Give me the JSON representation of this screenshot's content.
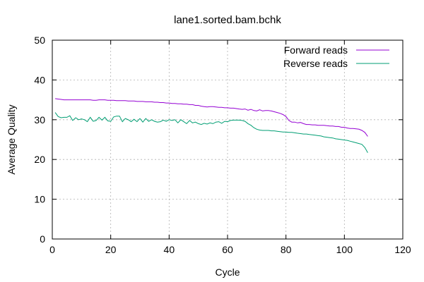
{
  "chart_data": {
    "type": "line",
    "title": "lane1.sorted.bam.bchk",
    "xlabel": "Cycle",
    "ylabel": "Average Quality",
    "xlim": [
      0,
      120
    ],
    "ylim": [
      0,
      50
    ],
    "xticks": [
      0,
      20,
      40,
      60,
      80,
      100,
      120
    ],
    "yticks": [
      0,
      10,
      20,
      30,
      40,
      50
    ],
    "grid": true,
    "legend_position": "top-right",
    "series": [
      {
        "name": "Forward reads",
        "color": "#9400d3",
        "x": [
          1,
          2,
          3,
          4,
          5,
          6,
          7,
          8,
          9,
          10,
          11,
          12,
          13,
          14,
          15,
          16,
          17,
          18,
          19,
          20,
          21,
          22,
          23,
          24,
          25,
          26,
          27,
          28,
          29,
          30,
          31,
          32,
          33,
          34,
          35,
          36,
          37,
          38,
          39,
          40,
          41,
          42,
          43,
          44,
          45,
          46,
          47,
          48,
          49,
          50,
          51,
          52,
          53,
          54,
          55,
          56,
          57,
          58,
          59,
          60,
          61,
          62,
          63,
          64,
          65,
          66,
          67,
          68,
          69,
          70,
          71,
          72,
          73,
          74,
          75,
          76,
          77,
          78,
          79,
          80,
          81,
          82,
          83,
          84,
          85,
          86,
          87,
          88,
          89,
          90,
          91,
          92,
          93,
          94,
          95,
          96,
          97,
          98,
          99,
          100,
          101,
          102,
          103,
          104,
          105,
          106,
          107,
          108
        ],
        "y": [
          35.3,
          35.2,
          35.1,
          35.0,
          35.0,
          35.0,
          35.0,
          35.0,
          35.0,
          35.0,
          35.0,
          35.0,
          35.0,
          34.9,
          34.9,
          35.0,
          35.0,
          35.0,
          34.9,
          34.9,
          34.9,
          34.8,
          34.8,
          34.8,
          34.8,
          34.7,
          34.7,
          34.7,
          34.6,
          34.6,
          34.6,
          34.5,
          34.5,
          34.5,
          34.4,
          34.4,
          34.3,
          34.3,
          34.2,
          34.2,
          34.1,
          34.1,
          34.0,
          34.0,
          33.9,
          33.9,
          33.8,
          33.8,
          33.6,
          33.6,
          33.4,
          33.3,
          33.2,
          33.3,
          33.3,
          33.2,
          33.1,
          33.1,
          33.0,
          33.0,
          32.9,
          32.9,
          32.8,
          32.7,
          32.6,
          32.7,
          32.4,
          32.6,
          32.3,
          32.2,
          32.5,
          32.2,
          32.3,
          32.3,
          32.2,
          32.0,
          31.8,
          31.6,
          31.3,
          30.8,
          29.8,
          29.4,
          29.4,
          29.2,
          29.3,
          29.0,
          28.8,
          28.8,
          28.7,
          28.7,
          28.6,
          28.6,
          28.6,
          28.5,
          28.4,
          28.4,
          28.3,
          28.3,
          28.1,
          28.1,
          27.9,
          27.8,
          27.8,
          27.7,
          27.6,
          27.3,
          26.8,
          25.8
        ]
      },
      {
        "name": "Reverse reads",
        "color": "#009e73",
        "x": [
          1,
          2,
          3,
          4,
          5,
          6,
          7,
          8,
          9,
          10,
          11,
          12,
          13,
          14,
          15,
          16,
          17,
          18,
          19,
          20,
          21,
          22,
          23,
          24,
          25,
          26,
          27,
          28,
          29,
          30,
          31,
          32,
          33,
          34,
          35,
          36,
          37,
          38,
          39,
          40,
          41,
          42,
          43,
          44,
          45,
          46,
          47,
          48,
          49,
          50,
          51,
          52,
          53,
          54,
          55,
          56,
          57,
          58,
          59,
          60,
          61,
          62,
          63,
          64,
          65,
          66,
          67,
          68,
          69,
          70,
          71,
          72,
          73,
          74,
          75,
          76,
          77,
          78,
          79,
          80,
          81,
          82,
          83,
          84,
          85,
          86,
          87,
          88,
          89,
          90,
          91,
          92,
          93,
          94,
          95,
          96,
          97,
          98,
          99,
          100,
          101,
          102,
          103,
          104,
          105,
          106,
          107,
          108
        ],
        "y": [
          31.8,
          30.8,
          30.5,
          30.6,
          30.6,
          31.0,
          29.8,
          30.5,
          30.0,
          30.2,
          30.0,
          29.5,
          30.6,
          29.6,
          29.8,
          30.6,
          29.9,
          30.6,
          29.7,
          29.6,
          30.7,
          30.9,
          30.9,
          29.5,
          30.3,
          30.0,
          29.5,
          30.1,
          29.5,
          30.3,
          29.4,
          30.3,
          29.6,
          30.0,
          29.6,
          29.4,
          29.5,
          29.9,
          29.6,
          30.0,
          29.8,
          30.0,
          29.2,
          30.0,
          29.5,
          29.0,
          29.8,
          29.2,
          29.4,
          29.0,
          28.8,
          29.1,
          28.9,
          29.2,
          29.0,
          29.4,
          29.5,
          29.1,
          29.6,
          29.5,
          29.8,
          29.9,
          29.9,
          29.9,
          29.8,
          29.6,
          29.0,
          28.6,
          28.0,
          27.6,
          27.4,
          27.3,
          27.3,
          27.3,
          27.2,
          27.2,
          27.1,
          27.0,
          26.9,
          26.9,
          26.8,
          26.8,
          26.7,
          26.6,
          26.5,
          26.4,
          26.4,
          26.3,
          26.2,
          26.1,
          26.0,
          25.9,
          25.7,
          25.6,
          25.5,
          25.4,
          25.2,
          25.1,
          25.0,
          24.9,
          24.8,
          24.6,
          24.4,
          24.2,
          24.0,
          23.8,
          23.0,
          21.7
        ]
      }
    ]
  }
}
